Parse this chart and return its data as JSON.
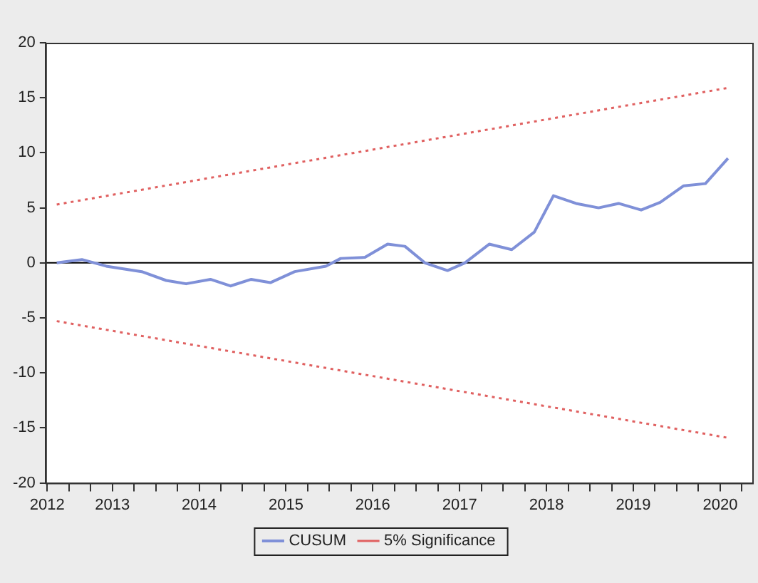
{
  "chart_data": {
    "type": "line",
    "xlim": [
      2012.23,
      2020.37
    ],
    "xticks": [
      {
        "value": 2012.25,
        "label": "2012"
      },
      {
        "value": 2012.5,
        "label": null
      },
      {
        "value": 2012.75,
        "label": null
      },
      {
        "value": 2013,
        "label": "2013"
      },
      {
        "value": 2013.25,
        "label": null
      },
      {
        "value": 2013.5,
        "label": null
      },
      {
        "value": 2013.75,
        "label": null
      },
      {
        "value": 2014,
        "label": "2014"
      },
      {
        "value": 2014.25,
        "label": null
      },
      {
        "value": 2014.5,
        "label": null
      },
      {
        "value": 2014.75,
        "label": null
      },
      {
        "value": 2015,
        "label": "2015"
      },
      {
        "value": 2015.25,
        "label": null
      },
      {
        "value": 2015.5,
        "label": null
      },
      {
        "value": 2015.75,
        "label": null
      },
      {
        "value": 2016,
        "label": "2016"
      },
      {
        "value": 2016.25,
        "label": null
      },
      {
        "value": 2016.5,
        "label": null
      },
      {
        "value": 2016.75,
        "label": null
      },
      {
        "value": 2017,
        "label": "2017"
      },
      {
        "value": 2017.25,
        "label": null
      },
      {
        "value": 2017.5,
        "label": null
      },
      {
        "value": 2017.75,
        "label": null
      },
      {
        "value": 2018,
        "label": "2018"
      },
      {
        "value": 2018.25,
        "label": null
      },
      {
        "value": 2018.5,
        "label": null
      },
      {
        "value": 2018.75,
        "label": null
      },
      {
        "value": 2019,
        "label": "2019"
      },
      {
        "value": 2019.25,
        "label": null
      },
      {
        "value": 2019.5,
        "label": null
      },
      {
        "value": 2019.75,
        "label": null
      },
      {
        "value": 2020,
        "label": "2020"
      },
      {
        "value": 2020.25,
        "label": null
      }
    ],
    "ylim": [
      -20,
      20
    ],
    "yticks": [
      -20,
      -15,
      -10,
      -5,
      0,
      5,
      10,
      15,
      20
    ],
    "grid": false,
    "legend": "bottom",
    "marker": "none",
    "ref_lines": [
      {
        "axis": "y",
        "value": 0,
        "color": "#000000"
      }
    ],
    "series": [
      {
        "name": "CUSUM",
        "color": "#7f90d8",
        "line_style": "solid",
        "x": [
          2012.36,
          2012.65,
          2012.93,
          2013.34,
          2013.62,
          2013.85,
          2014.13,
          2014.36,
          2014.6,
          2014.82,
          2015.1,
          2015.46,
          2015.63,
          2015.91,
          2016.17,
          2016.37,
          2016.6,
          2016.86,
          2017.06,
          2017.34,
          2017.6,
          2017.86,
          2018.08,
          2018.34,
          2018.6,
          2018.83,
          2019.09,
          2019.31,
          2019.58,
          2019.83,
          2020.09
        ],
        "values": [
          0,
          0.3,
          -0.3,
          -0.8,
          -1.6,
          -1.9,
          -1.5,
          -2.1,
          -1.5,
          -1.8,
          -0.8,
          -0.3,
          0.4,
          0.5,
          1.7,
          1.5,
          0,
          -0.7,
          0,
          1.7,
          1.2,
          2.8,
          6.1,
          5.4,
          5.0,
          5.4,
          4.8,
          5.5,
          7.0,
          7.2,
          9.5
        ]
      },
      {
        "name": "5% Significance",
        "color": "#e06060",
        "line_style": "dotted",
        "x": [
          2012.36,
          2020.09
        ],
        "values": [
          5.3,
          15.9
        ]
      },
      {
        "color": "#e06060",
        "line_style": "dotted",
        "x": [
          2012.36,
          2020.09
        ],
        "values": [
          -5.3,
          -15.9
        ]
      }
    ]
  }
}
